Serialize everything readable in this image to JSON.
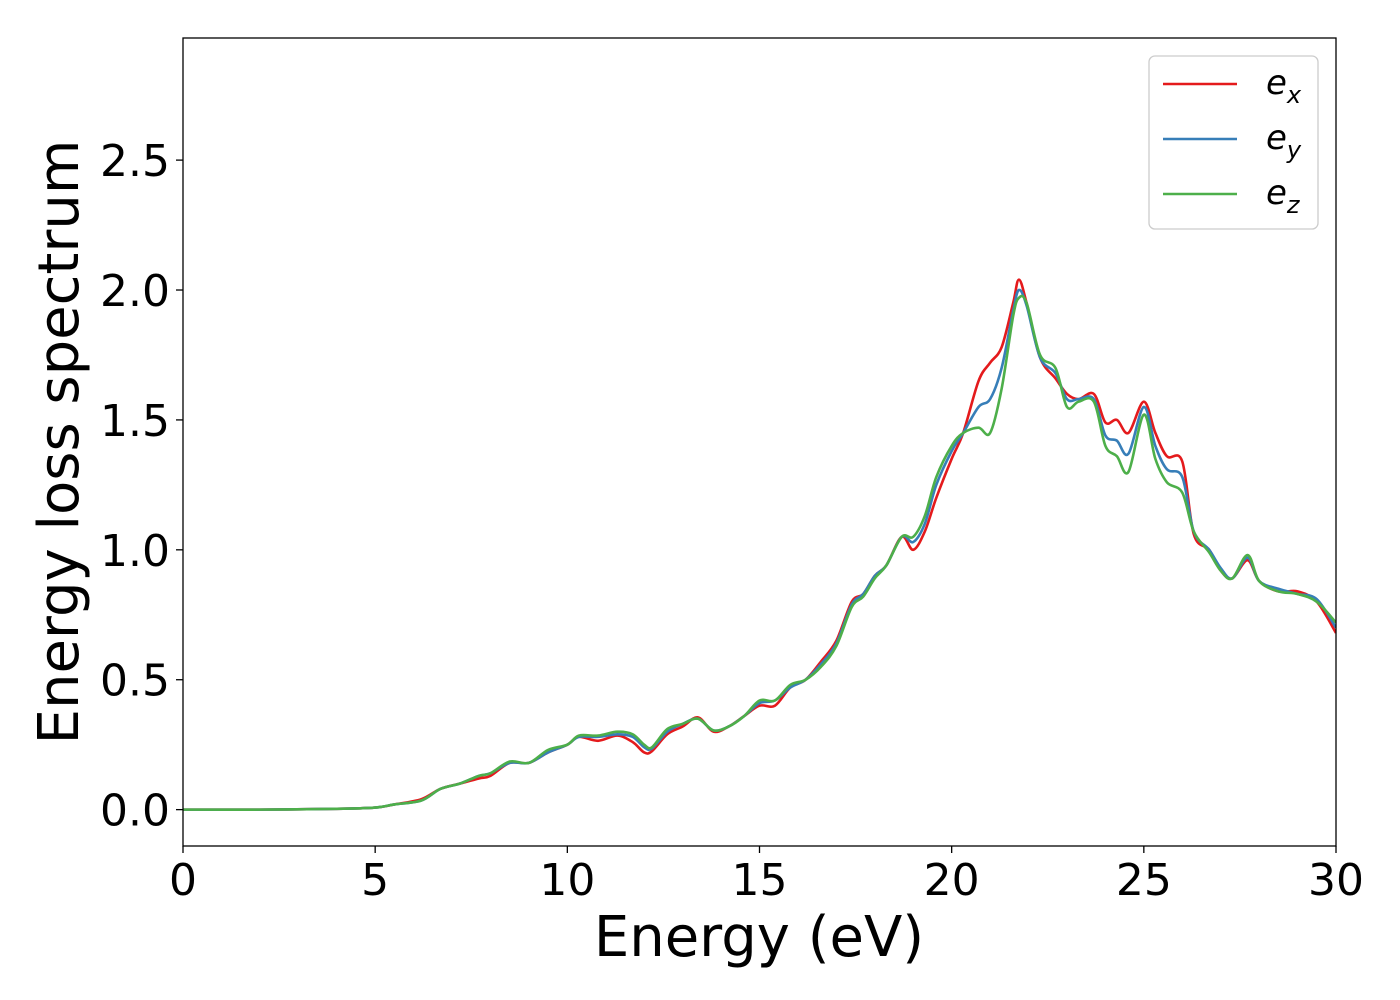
{
  "chart_data": {
    "type": "line",
    "title": "",
    "xlabel": "Energy (eV)",
    "ylabel": "Energy loss spectrum",
    "xlim": [
      0,
      30
    ],
    "ylim": [
      -0.14,
      2.97
    ],
    "xticks": [
      "0",
      "5",
      "10",
      "15",
      "20",
      "25",
      "30"
    ],
    "yticks": [
      "0.0",
      "0.5",
      "1.0",
      "1.5",
      "2.0",
      "2.5"
    ],
    "grid": false,
    "legend_position": "top-right",
    "series": [
      {
        "name": "e_x",
        "legend_base": "e",
        "legend_sub": "x",
        "color": "#e41a1c",
        "x": [
          0,
          2,
          4,
          5,
          5.5,
          6.2,
          6.7,
          7.2,
          7.7,
          8.0,
          8.5,
          9.0,
          9.5,
          10.0,
          10.3,
          10.8,
          11.3,
          11.7,
          12.0,
          12.2,
          12.6,
          13.0,
          13.4,
          13.8,
          14.2,
          14.6,
          15.0,
          15.4,
          15.8,
          16.2,
          16.6,
          17.0,
          17.4,
          17.7,
          18.0,
          18.3,
          18.7,
          19.0,
          19.3,
          19.6,
          20.0,
          20.3,
          20.7,
          21.0,
          21.3,
          21.6,
          21.75,
          21.95,
          22.3,
          22.7,
          23.0,
          23.3,
          23.7,
          24.0,
          24.3,
          24.6,
          25.0,
          25.3,
          25.6,
          26.0,
          26.3,
          26.7,
          27.0,
          27.3,
          27.7,
          28.0,
          28.5,
          29.0,
          29.5,
          30.0
        ],
        "y": [
          0.0,
          0.0,
          0.003,
          0.008,
          0.02,
          0.04,
          0.08,
          0.1,
          0.12,
          0.13,
          0.18,
          0.18,
          0.22,
          0.25,
          0.28,
          0.265,
          0.285,
          0.26,
          0.22,
          0.225,
          0.29,
          0.32,
          0.355,
          0.3,
          0.32,
          0.36,
          0.4,
          0.4,
          0.47,
          0.5,
          0.57,
          0.65,
          0.8,
          0.83,
          0.9,
          0.94,
          1.05,
          1.0,
          1.07,
          1.2,
          1.35,
          1.45,
          1.65,
          1.72,
          1.78,
          1.95,
          2.04,
          1.95,
          1.74,
          1.66,
          1.6,
          1.58,
          1.6,
          1.49,
          1.5,
          1.45,
          1.57,
          1.45,
          1.36,
          1.34,
          1.06,
          1.0,
          0.92,
          0.89,
          0.96,
          0.88,
          0.84,
          0.84,
          0.8,
          0.68
        ]
      },
      {
        "name": "e_y",
        "legend_base": "e",
        "legend_sub": "y",
        "color": "#377eb8",
        "x": [
          0,
          2,
          4,
          5,
          5.5,
          6.2,
          6.7,
          7.2,
          7.7,
          8.0,
          8.5,
          9.0,
          9.5,
          10.0,
          10.3,
          10.8,
          11.3,
          11.7,
          12.0,
          12.2,
          12.6,
          13.0,
          13.4,
          13.8,
          14.2,
          14.6,
          15.0,
          15.4,
          15.8,
          16.2,
          16.6,
          17.0,
          17.4,
          17.7,
          18.0,
          18.3,
          18.7,
          19.0,
          19.3,
          19.6,
          20.0,
          20.3,
          20.7,
          21.0,
          21.3,
          21.6,
          21.75,
          21.95,
          22.3,
          22.7,
          23.0,
          23.3,
          23.7,
          24.0,
          24.3,
          24.6,
          25.0,
          25.3,
          25.6,
          26.0,
          26.3,
          26.7,
          27.0,
          27.3,
          27.7,
          28.0,
          28.5,
          29.0,
          29.5,
          30.0
        ],
        "y": [
          0.0,
          0.0,
          0.003,
          0.008,
          0.02,
          0.035,
          0.08,
          0.1,
          0.13,
          0.14,
          0.18,
          0.18,
          0.22,
          0.25,
          0.28,
          0.28,
          0.29,
          0.28,
          0.24,
          0.235,
          0.3,
          0.33,
          0.35,
          0.305,
          0.32,
          0.36,
          0.41,
          0.42,
          0.47,
          0.5,
          0.56,
          0.64,
          0.79,
          0.83,
          0.9,
          0.94,
          1.05,
          1.03,
          1.1,
          1.25,
          1.38,
          1.45,
          1.55,
          1.58,
          1.7,
          1.92,
          2.0,
          1.94,
          1.74,
          1.68,
          1.58,
          1.58,
          1.58,
          1.44,
          1.42,
          1.37,
          1.55,
          1.4,
          1.31,
          1.28,
          1.07,
          1.0,
          0.93,
          0.89,
          0.97,
          0.88,
          0.85,
          0.83,
          0.81,
          0.7
        ]
      },
      {
        "name": "e_z",
        "legend_base": "e",
        "legend_sub": "z",
        "color": "#4daf4a",
        "x": [
          0,
          2,
          4,
          5,
          5.5,
          6.2,
          6.7,
          7.2,
          7.7,
          8.0,
          8.5,
          9.0,
          9.5,
          10.0,
          10.3,
          10.8,
          11.3,
          11.7,
          12.0,
          12.2,
          12.6,
          13.0,
          13.4,
          13.8,
          14.2,
          14.6,
          15.0,
          15.4,
          15.8,
          16.2,
          16.6,
          17.0,
          17.4,
          17.7,
          18.0,
          18.3,
          18.7,
          19.0,
          19.3,
          19.6,
          20.0,
          20.3,
          20.7,
          21.0,
          21.3,
          21.6,
          21.75,
          21.95,
          22.3,
          22.7,
          23.0,
          23.3,
          23.7,
          24.0,
          24.3,
          24.6,
          25.0,
          25.3,
          25.6,
          26.0,
          26.3,
          26.7,
          27.0,
          27.3,
          27.7,
          28.0,
          28.5,
          29.0,
          29.5,
          30.0
        ],
        "y": [
          0.0,
          0.0,
          0.003,
          0.008,
          0.02,
          0.035,
          0.08,
          0.1,
          0.13,
          0.14,
          0.185,
          0.18,
          0.23,
          0.25,
          0.285,
          0.285,
          0.3,
          0.29,
          0.25,
          0.24,
          0.31,
          0.33,
          0.35,
          0.305,
          0.32,
          0.36,
          0.42,
          0.42,
          0.48,
          0.5,
          0.55,
          0.63,
          0.78,
          0.82,
          0.89,
          0.94,
          1.05,
          1.05,
          1.13,
          1.28,
          1.4,
          1.45,
          1.47,
          1.45,
          1.62,
          1.9,
          1.97,
          1.95,
          1.75,
          1.7,
          1.55,
          1.57,
          1.57,
          1.4,
          1.36,
          1.3,
          1.52,
          1.35,
          1.26,
          1.22,
          1.07,
          0.99,
          0.92,
          0.89,
          0.98,
          0.88,
          0.84,
          0.83,
          0.8,
          0.72
        ]
      }
    ]
  }
}
